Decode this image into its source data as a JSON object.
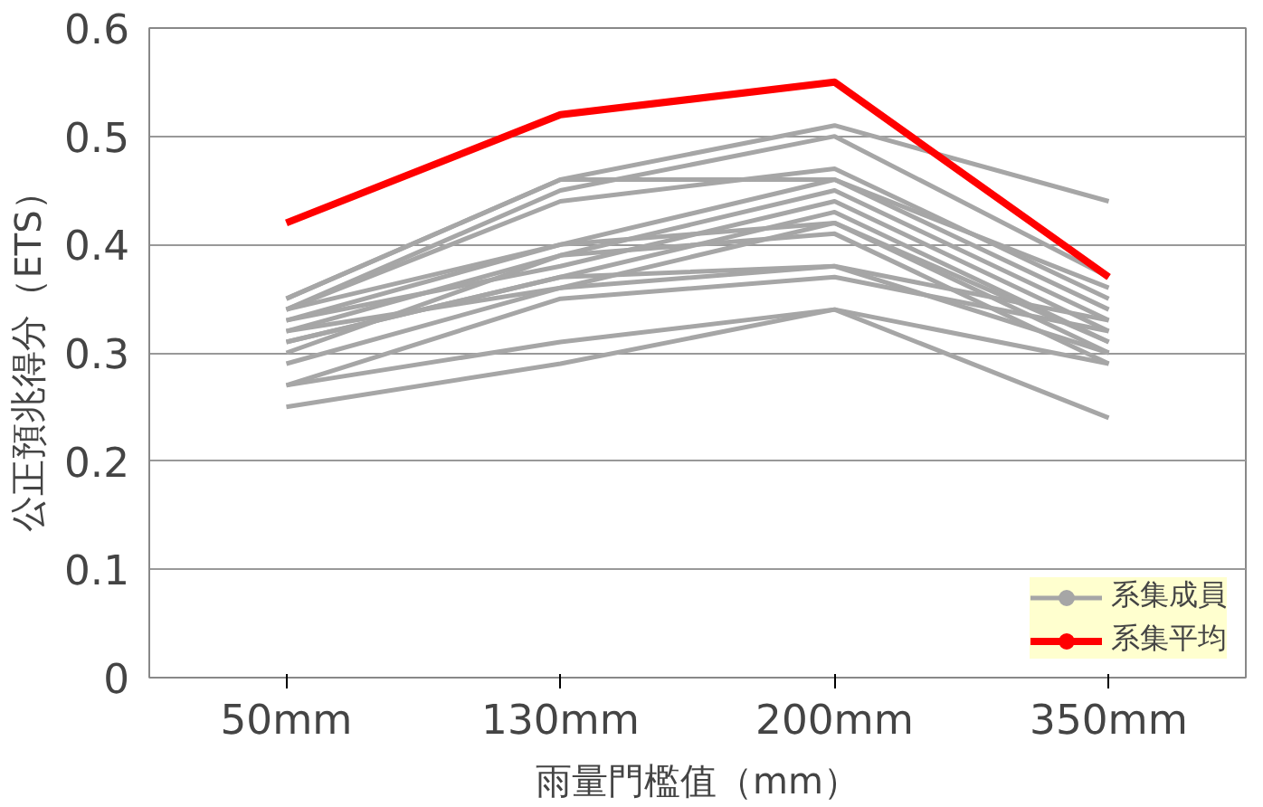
{
  "chart_data": {
    "type": "line",
    "xlabel": "雨量門檻值（mm）",
    "ylabel": "公正預兆得分（ETS）",
    "categories": [
      "50mm",
      "130mm",
      "200mm",
      "350mm"
    ],
    "ylim": [
      0,
      0.6
    ],
    "yticks": [
      0,
      0.1,
      0.2,
      0.3,
      0.4,
      0.5,
      0.6
    ],
    "grid": "y",
    "legend": "bottom right",
    "marker": "none",
    "line_style": "solid",
    "series": [
      {
        "name": "系集成員",
        "color": "#a6a6a6",
        "values": [
          0.35,
          0.46,
          0.51,
          0.44
        ]
      },
      {
        "color": "#a6a6a6",
        "values": [
          0.34,
          0.45,
          0.5,
          0.37
        ]
      },
      {
        "color": "#a6a6a6",
        "values": [
          0.35,
          0.46,
          0.46,
          0.36
        ]
      },
      {
        "color": "#a6a6a6",
        "values": [
          0.34,
          0.44,
          0.47,
          0.35
        ]
      },
      {
        "color": "#a6a6a6",
        "values": [
          0.33,
          0.4,
          0.46,
          0.34
        ]
      },
      {
        "color": "#a6a6a6",
        "values": [
          0.32,
          0.39,
          0.45,
          0.33
        ]
      },
      {
        "color": "#a6a6a6",
        "values": [
          0.33,
          0.38,
          0.44,
          0.32
        ]
      },
      {
        "color": "#a6a6a6",
        "values": [
          0.31,
          0.37,
          0.43,
          0.31
        ]
      },
      {
        "color": "#a6a6a6",
        "values": [
          0.32,
          0.36,
          0.42,
          0.3
        ]
      },
      {
        "color": "#a6a6a6",
        "values": [
          0.3,
          0.39,
          0.41,
          0.29
        ]
      },
      {
        "color": "#a6a6a6",
        "values": [
          0.29,
          0.36,
          0.38,
          0.33
        ]
      },
      {
        "color": "#a6a6a6",
        "values": [
          0.31,
          0.37,
          0.38,
          0.3
        ]
      },
      {
        "color": "#a6a6a6",
        "values": [
          0.27,
          0.35,
          0.37,
          0.32
        ]
      },
      {
        "color": "#a6a6a6",
        "values": [
          0.27,
          0.31,
          0.34,
          0.29
        ]
      },
      {
        "color": "#a6a6a6",
        "values": [
          0.25,
          0.29,
          0.34,
          0.24
        ]
      },
      {
        "color": "#a6a6a6",
        "values": [
          0.34,
          0.4,
          0.42,
          0.31
        ]
      },
      {
        "name": "系集平均",
        "color": "#ff0000",
        "values": [
          0.42,
          0.52,
          0.55,
          0.37
        ]
      }
    ]
  }
}
